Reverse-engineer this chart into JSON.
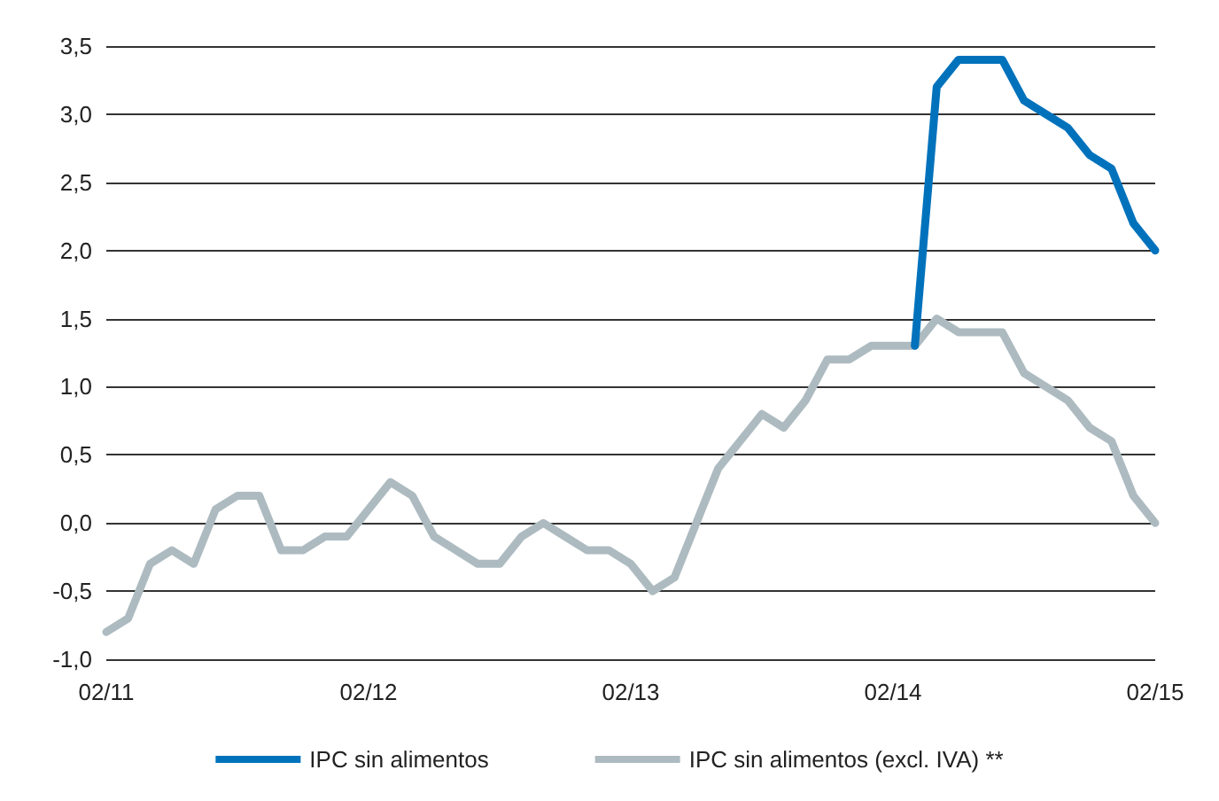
{
  "chart_data": {
    "type": "line",
    "categories": [
      "02/11",
      null,
      null,
      null,
      null,
      null,
      null,
      null,
      null,
      null,
      null,
      null,
      "02/12",
      null,
      null,
      null,
      null,
      null,
      null,
      null,
      null,
      null,
      null,
      null,
      "02/13",
      null,
      null,
      null,
      null,
      null,
      null,
      null,
      null,
      null,
      null,
      null,
      "02/14",
      null,
      null,
      null,
      null,
      null,
      null,
      null,
      null,
      null,
      null,
      null,
      "02/15"
    ],
    "series": [
      {
        "name": "IPC sin alimentos",
        "color": "#0072bc",
        "values": [
          null,
          null,
          null,
          null,
          null,
          null,
          null,
          null,
          null,
          null,
          null,
          null,
          null,
          null,
          null,
          null,
          null,
          null,
          null,
          null,
          null,
          null,
          null,
          null,
          null,
          null,
          null,
          null,
          null,
          null,
          null,
          null,
          null,
          null,
          null,
          null,
          null,
          1.3,
          3.2,
          3.4,
          3.4,
          3.4,
          3.1,
          3.0,
          2.9,
          2.7,
          2.6,
          2.2,
          2.0
        ]
      },
      {
        "name": "IPC sin alimentos (excl. IVA) **",
        "color": "#adbbc1",
        "values": [
          -0.8,
          -0.7,
          -0.3,
          -0.2,
          -0.3,
          0.1,
          0.2,
          0.2,
          -0.2,
          -0.2,
          -0.1,
          -0.1,
          0.1,
          0.3,
          0.2,
          -0.1,
          -0.2,
          -0.3,
          -0.3,
          -0.1,
          0.0,
          -0.1,
          -0.2,
          -0.2,
          -0.3,
          -0.5,
          -0.4,
          0.0,
          0.4,
          0.6,
          0.8,
          0.7,
          0.9,
          1.2,
          1.2,
          1.3,
          1.3,
          1.3,
          1.5,
          1.4,
          1.4,
          1.4,
          1.1,
          1.0,
          0.9,
          0.7,
          0.6,
          0.2,
          0.0
        ]
      }
    ],
    "ylim": [
      -1.0,
      3.5
    ],
    "yticks": [
      {
        "value": -1.0,
        "label": "-1,0"
      },
      {
        "value": -0.5,
        "label": "-0,5"
      },
      {
        "value": 0.0,
        "label": "0,0"
      },
      {
        "value": 0.5,
        "label": "0,5"
      },
      {
        "value": 1.0,
        "label": "1,0"
      },
      {
        "value": 1.5,
        "label": "1,5"
      },
      {
        "value": 2.0,
        "label": "2,0"
      },
      {
        "value": 2.5,
        "label": "2,5"
      },
      {
        "value": 3.0,
        "label": "3,0"
      },
      {
        "value": 3.5,
        "label": "3,5"
      }
    ],
    "grid": "y",
    "legend": "bottom",
    "marker": "none",
    "line_style": "solid"
  }
}
